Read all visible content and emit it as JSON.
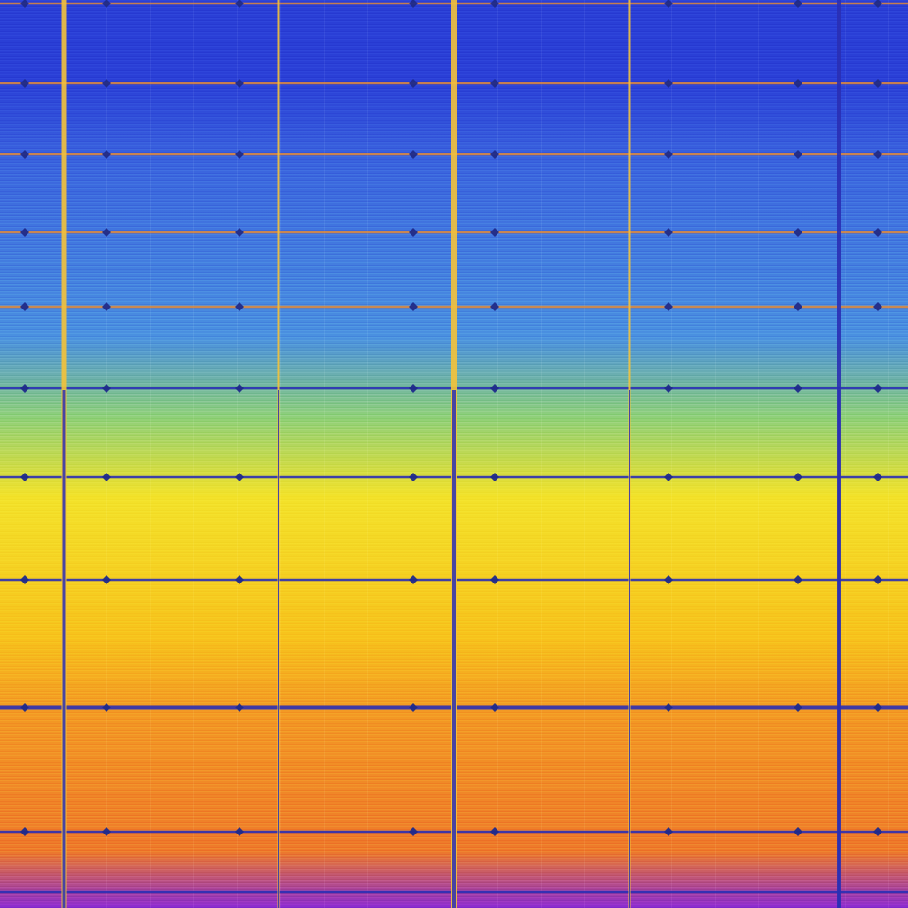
{
  "image": {
    "kind": "abstract-gradient-grid",
    "gradient_colors": {
      "top": "#2a3fd6",
      "upper": "#3a63de",
      "middle_blue": "#4a90e0",
      "green_band": "#8fd07a",
      "yellow": "#f3e22a",
      "amber": "#f7c21c",
      "orange": "#f39a24",
      "deep_orange": "#ee7a2a",
      "bottom_violet": "#8a2bd2"
    },
    "line_colors": {
      "grid_blue": "#2a2fb4",
      "grid_orange": "#e08a3a",
      "accent_yellow": "#f4c23a",
      "node": "#1f2a8a"
    }
  }
}
